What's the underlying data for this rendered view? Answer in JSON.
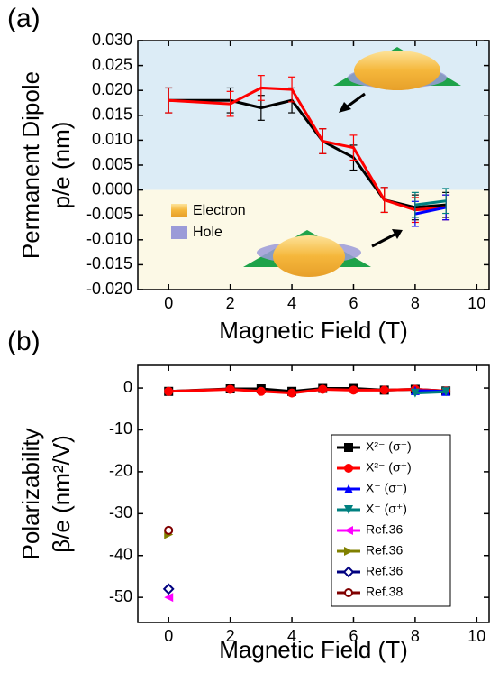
{
  "chart_data": [
    {
      "type": "line",
      "panel_label": "(a)",
      "ylabel": [
        "Permanent Dipole",
        "p/e (nm)"
      ],
      "xlabel": "Magnetic Field (T)",
      "xlim": [
        -1,
        10.4
      ],
      "ylim": [
        -0.02,
        0.03
      ],
      "xticks": [
        0,
        2,
        4,
        6,
        8,
        10
      ],
      "yticks": [
        {
          "value": 0.03,
          "label": "0.030"
        },
        {
          "value": 0.025,
          "label": "0.025"
        },
        {
          "value": 0.02,
          "label": "0.020"
        },
        {
          "value": 0.015,
          "label": "0.015"
        },
        {
          "value": 0.01,
          "label": "0.010"
        },
        {
          "value": 0.005,
          "label": "0.005"
        },
        {
          "value": 0,
          "label": "0.000"
        },
        {
          "value": -0.005,
          "label": "-0.005"
        },
        {
          "value": -0.01,
          "label": "-0.010"
        },
        {
          "value": -0.015,
          "label": "-0.015"
        },
        {
          "value": -0.02,
          "label": "-0.020"
        }
      ],
      "background_colors": [
        "#dcecf6",
        "#fcf9e6"
      ],
      "annotations": [
        "Electron",
        "Hole"
      ],
      "series": [
        {
          "color": "#000000",
          "x": [
            0,
            2,
            3,
            4,
            5,
            6,
            7,
            8,
            9
          ],
          "values": [
            0.018,
            0.018,
            0.0165,
            0.018,
            0.0098,
            0.0065,
            -0.002,
            -0.0035,
            -0.003
          ],
          "errors": [
            0.0025,
            0.0025,
            0.0025,
            0.0025,
            0.0025,
            0.0025,
            0.0025,
            0.0025,
            0.0025
          ]
        },
        {
          "color": "#ff0000",
          "x": [
            0,
            2,
            3,
            4,
            5,
            6,
            7,
            8,
            9
          ],
          "values": [
            0.018,
            0.0173,
            0.0205,
            0.0202,
            0.0098,
            0.0085,
            -0.002,
            -0.004,
            -0.0035
          ],
          "errors": [
            0.0025,
            0.0025,
            0.0025,
            0.0025,
            0.0025,
            0.0025,
            0.0025,
            0.0025,
            0.0025
          ]
        },
        {
          "color": "#0000ff",
          "x": [
            8,
            9
          ],
          "values": [
            -0.0048,
            -0.0035
          ],
          "errors": [
            0.0025,
            0.0025
          ]
        },
        {
          "color": "#008080",
          "x": [
            8,
            9
          ],
          "values": [
            -0.003,
            -0.0022
          ],
          "errors": [
            0.0025,
            0.0025
          ]
        }
      ]
    },
    {
      "type": "line",
      "panel_label": "(b)",
      "ylabel": [
        "Polarizability",
        "β/e (nm²/V)"
      ],
      "xlabel": "Magnetic Field (T)",
      "xlim": [
        -1,
        10.4
      ],
      "ylim": [
        -56,
        5.4
      ],
      "xticks": [
        0,
        2,
        4,
        6,
        8,
        10
      ],
      "yticks": [
        0,
        -10,
        -20,
        -30,
        -40,
        -50
      ],
      "series": [
        {
          "name": "X²⁻ (σ⁻)",
          "color": "#000000",
          "marker": "square",
          "x": [
            0,
            2,
            3,
            4,
            5,
            6,
            7,
            8,
            9
          ],
          "values": [
            -0.8,
            -0.2,
            -0.2,
            -0.8,
            -0.1,
            -0.1,
            -0.5,
            -0.3,
            -0.7
          ]
        },
        {
          "name": "X²⁻ (σ⁺)",
          "color": "#ff0000",
          "marker": "circle",
          "x": [
            0,
            2,
            3,
            4,
            5,
            6,
            7,
            8,
            9
          ],
          "values": [
            -0.8,
            -0.3,
            -0.8,
            -1.2,
            -0.3,
            -0.5,
            -0.5,
            -0.3,
            -0.7
          ]
        },
        {
          "name": "X⁻ (σ⁻)",
          "color": "#0000ff",
          "marker": "triangle-up",
          "x": [
            8,
            9
          ],
          "values": [
            -0.6,
            -0.8
          ]
        },
        {
          "name": "X⁻ (σ⁺)",
          "color": "#008080",
          "marker": "triangle-down",
          "x": [
            8,
            9
          ],
          "values": [
            -1.2,
            -0.9
          ]
        },
        {
          "name": "Ref.36",
          "color": "#ff00ff",
          "marker": "triangle-left",
          "x": [
            0
          ],
          "values": [
            -50
          ]
        },
        {
          "name": "Ref.36",
          "color": "#808000",
          "marker": "triangle-right",
          "x": [
            0
          ],
          "values": [
            -35
          ]
        },
        {
          "name": "Ref.36",
          "color": "#000080",
          "marker": "diamond-open",
          "x": [
            0
          ],
          "values": [
            -48
          ]
        },
        {
          "name": "Ref.38",
          "color": "#800000",
          "marker": "circle-open",
          "x": [
            0
          ],
          "values": [
            -34
          ]
        }
      ]
    }
  ]
}
